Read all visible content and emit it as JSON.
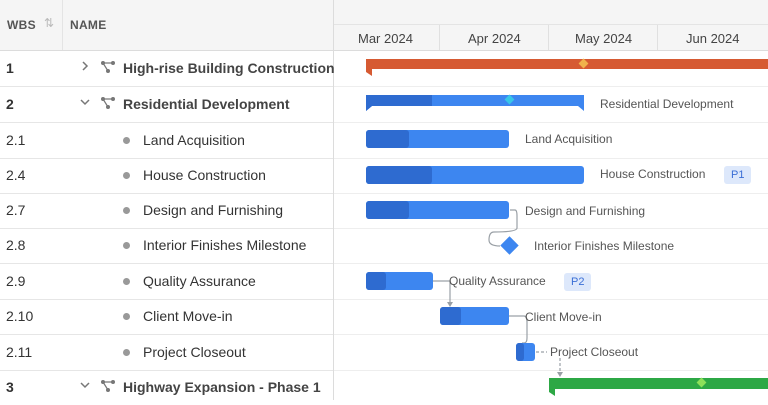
{
  "grid": {
    "col_wbs": "WBS",
    "col_name": "NAME",
    "rows": [
      {
        "wbs": "1",
        "name": "High-rise Building Construction"
      },
      {
        "wbs": "2",
        "name": "Residential Development"
      },
      {
        "wbs": "2.1",
        "name": "Land Acquisition"
      },
      {
        "wbs": "2.4",
        "name": "House Construction"
      },
      {
        "wbs": "2.7",
        "name": "Design and Furnishing"
      },
      {
        "wbs": "2.8",
        "name": "Interior Finishes Milestone"
      },
      {
        "wbs": "2.9",
        "name": "Quality Assurance"
      },
      {
        "wbs": "2.10",
        "name": "Client Move-in"
      },
      {
        "wbs": "2.11",
        "name": "Project Closeout"
      },
      {
        "wbs": "3",
        "name": "Highway Expansion - Phase 1"
      }
    ]
  },
  "timeline": {
    "months": [
      "Mar 2024",
      "Apr 2024",
      "May 2024",
      "Jun 2024"
    ]
  },
  "bars": {
    "residential": "Residential Development",
    "land": "Land Acquisition",
    "house": "House Construction",
    "house_badge": "P1",
    "design": "Design and Furnishing",
    "milestone": "Interior Finishes Milestone",
    "qa": "Quality Assurance",
    "qa_badge": "P2",
    "move": "Client Move-in",
    "closeout": "Project Closeout"
  },
  "colors": {
    "orange": "#d65a32",
    "blue": "#3d86f0",
    "blue_progress": "#2e6bd0",
    "green": "#2da845",
    "milestone": "#f0b24b"
  }
}
